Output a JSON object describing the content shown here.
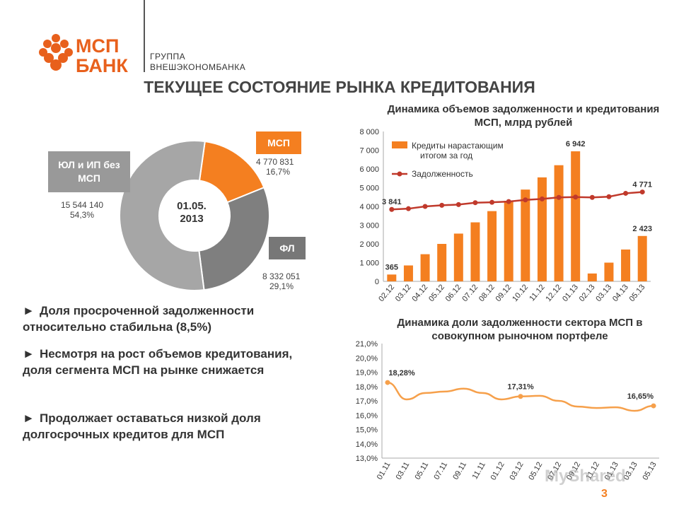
{
  "brand": {
    "logo_line1": "МСП",
    "logo_line2": "БАНК",
    "group_line1": "ГРУППА",
    "group_line2": "ВНЕШЭКОНОМБАНКА"
  },
  "page_title": "ТЕКУЩЕЕ СОСТОЯНИЕ РЫНКА КРЕДИТОВАНИЯ",
  "bullets": [
    "Доля просроченной задолженности относительно стабильна (8,5%)",
    "Несмотря на рост объемов кредитования, доля сегмента МСП на рынке снижается",
    "Продолжает оставаться низкой доля долгосрочных кредитов для МСП"
  ],
  "bullet_marker": "►",
  "page_number": "3",
  "watermark": "MyShared",
  "colors": {
    "accent": "#f47f20",
    "line": "#c0392b",
    "grey_light": "#a6a6a6",
    "grey_dark": "#7f7f7f"
  },
  "chart_data": [
    {
      "type": "pie",
      "center_label": "01.05.\n2013",
      "slices": [
        {
          "name": "МСП",
          "value": 4770831,
          "value_label": "4 770 831",
          "percent": 16.7,
          "percent_label": "16,7%",
          "color": "#f47f20"
        },
        {
          "name": "ФЛ",
          "value": 8332051,
          "value_label": "8 332 051",
          "percent": 29.1,
          "percent_label": "29,1%",
          "color": "#7f7f7f"
        },
        {
          "name": "ЮЛ и ИП без МСП",
          "value": 15544140,
          "value_label": "15 544 140",
          "percent": 54.3,
          "percent_label": "54,3%",
          "color": "#a6a6a6"
        }
      ]
    },
    {
      "type": "bar",
      "title": "Динамика объемов задолженности и кредитования МСП, млрд рублей",
      "categories": [
        "02.12",
        "03.12",
        "04.12",
        "05.12",
        "06.12",
        "07.12",
        "08.12",
        "09.12",
        "10.12",
        "11.12",
        "12.12",
        "01.13",
        "02.13",
        "03.13",
        "04.13",
        "05.13"
      ],
      "series": [
        {
          "name": "Кредиты нарастающим итогом за год",
          "type": "bar",
          "color": "#f47f20",
          "values": [
            365,
            850,
            1450,
            2000,
            2550,
            3150,
            3750,
            4300,
            4900,
            5550,
            6200,
            6942,
            420,
            1000,
            1700,
            2423
          ]
        },
        {
          "name": "Задолженность",
          "type": "line",
          "color": "#c0392b",
          "values": [
            3841,
            3880,
            4000,
            4060,
            4100,
            4200,
            4220,
            4260,
            4350,
            4400,
            4480,
            4500,
            4480,
            4520,
            4700,
            4771
          ]
        }
      ],
      "data_labels": [
        {
          "series": 0,
          "index": 0,
          "text": "365"
        },
        {
          "series": 0,
          "index": 11,
          "text": "6 942"
        },
        {
          "series": 0,
          "index": 15,
          "text": "2 423"
        },
        {
          "series": 1,
          "index": 0,
          "text": "3 841"
        },
        {
          "series": 1,
          "index": 15,
          "text": "4 771"
        }
      ],
      "y_ticks": [
        "0",
        "1 000",
        "2 000",
        "3 000",
        "4 000",
        "5 000",
        "6 000",
        "7 000",
        "8 000"
      ],
      "ylim": [
        0,
        8000
      ],
      "legend": "top-left",
      "grid": false
    },
    {
      "type": "line",
      "title": "Динамика доли задолженности сектора МСП в совокупном рыночном портфеле",
      "categories": [
        "01.11",
        "03.11",
        "05.11",
        "07.11",
        "09.11",
        "11.11",
        "01.12",
        "03.12",
        "05.12",
        "07.12",
        "09.12",
        "11.12",
        "01.13",
        "03.13",
        "05.13"
      ],
      "series": [
        {
          "name": "",
          "color": "#f6a04b",
          "values": [
            18.28,
            17.1,
            17.55,
            17.65,
            17.85,
            17.55,
            17.1,
            17.31,
            17.35,
            17.0,
            16.6,
            16.5,
            16.55,
            16.3,
            16.65
          ]
        }
      ],
      "data_labels": [
        {
          "index": 0,
          "text": "18,28%"
        },
        {
          "index": 7,
          "text": "17,31%"
        },
        {
          "index": 14,
          "text": "16,65%"
        }
      ],
      "y_ticks": [
        "13,0%",
        "14,0%",
        "15,0%",
        "16,0%",
        "17,0%",
        "18,0%",
        "19,0%",
        "20,0%",
        "21,0%"
      ],
      "ylim": [
        13.0,
        21.0
      ],
      "grid": false
    }
  ]
}
